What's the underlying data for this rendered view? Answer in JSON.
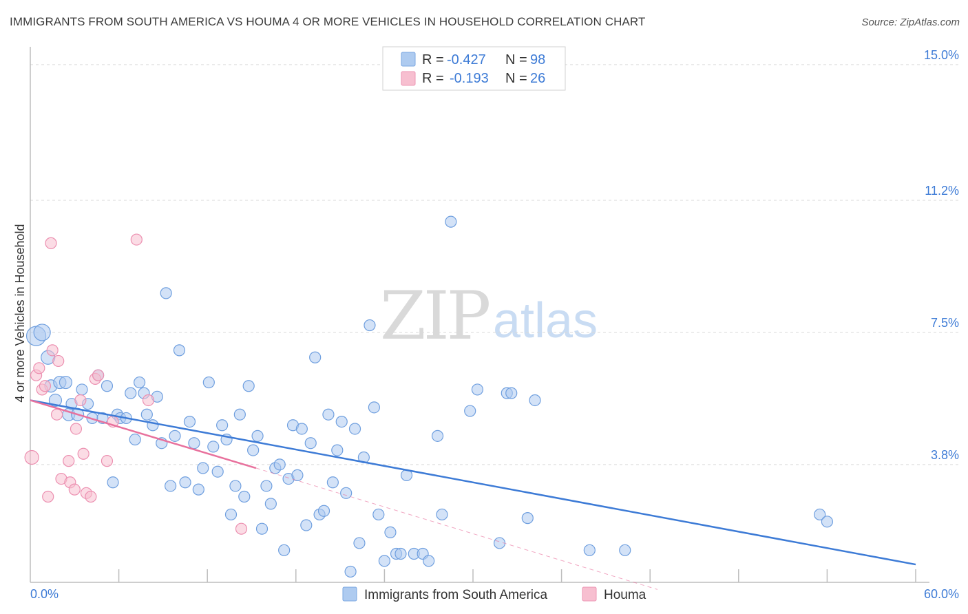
{
  "header": {
    "title": "IMMIGRANTS FROM SOUTH AMERICA VS HOUMA 4 OR MORE VEHICLES IN HOUSEHOLD CORRELATION CHART",
    "source": "Source: ZipAtlas.com"
  },
  "watermark": {
    "zip": "ZIP",
    "atlas": "atlas"
  },
  "legend": {
    "rows": [
      {
        "r_label": "R =",
        "r_value": "-0.427",
        "n_label": "N =",
        "n_value": "98",
        "color": "#aecbf0"
      },
      {
        "r_label": "R =",
        "r_value": "-0.193",
        "n_label": "N =",
        "n_value": "26",
        "color": "#f7bfd0"
      }
    ]
  },
  "chart_data": {
    "type": "scatter",
    "title": "IMMIGRANTS FROM SOUTH AMERICA VS HOUMA 4 OR MORE VEHICLES IN HOUSEHOLD CORRELATION CHART",
    "xlabel": "",
    "ylabel": "4 or more Vehicles in Household",
    "xlim": [
      0,
      60
    ],
    "ylim": [
      0.5,
      15.5
    ],
    "x_tick_labels": [
      "0.0%",
      "60.0%"
    ],
    "y_ticks": [
      3.8,
      7.5,
      11.2,
      15.0
    ],
    "y_tick_labels": [
      "3.8%",
      "7.5%",
      "11.2%",
      "15.0%"
    ],
    "grid": true,
    "legend_position": "bottom",
    "colors": {
      "blue": "#3d7bd6",
      "pink": "#e8719d",
      "blue_fill": "#aecbf0",
      "pink_fill": "#f7bfd0"
    },
    "series": [
      {
        "name": "Immigrants from South America",
        "color": "#3d7bd6",
        "trend": {
          "x": [
            0,
            60
          ],
          "y": [
            5.6,
            1.0
          ]
        },
        "points": [
          [
            0.4,
            7.4,
            14
          ],
          [
            0.8,
            7.5,
            12
          ],
          [
            1.2,
            6.8,
            10
          ],
          [
            1.4,
            6.0,
            9
          ],
          [
            1.7,
            5.6,
            9
          ],
          [
            2.0,
            6.1,
            9
          ],
          [
            2.4,
            6.1,
            9
          ],
          [
            2.6,
            5.2,
            9
          ],
          [
            2.8,
            5.5,
            8
          ],
          [
            3.2,
            5.2,
            9
          ],
          [
            3.5,
            5.9,
            8
          ],
          [
            3.9,
            5.5,
            8
          ],
          [
            4.2,
            5.1,
            8
          ],
          [
            4.6,
            6.3,
            8
          ],
          [
            4.9,
            5.1,
            8
          ],
          [
            5.2,
            6.0,
            8
          ],
          [
            5.6,
            3.3,
            8
          ],
          [
            5.9,
            5.2,
            8
          ],
          [
            6.1,
            5.1,
            8
          ],
          [
            6.5,
            5.1,
            8
          ],
          [
            6.8,
            5.8,
            8
          ],
          [
            7.1,
            4.5,
            8
          ],
          [
            7.4,
            6.1,
            8
          ],
          [
            7.7,
            5.8,
            8
          ],
          [
            7.9,
            5.2,
            8
          ],
          [
            8.3,
            4.9,
            8
          ],
          [
            8.6,
            5.7,
            8
          ],
          [
            8.9,
            4.4,
            8
          ],
          [
            9.2,
            8.6,
            8
          ],
          [
            9.5,
            3.2,
            8
          ],
          [
            9.8,
            4.6,
            8
          ],
          [
            10.1,
            7.0,
            8
          ],
          [
            10.5,
            3.3,
            8
          ],
          [
            10.8,
            5.0,
            8
          ],
          [
            11.1,
            4.4,
            8
          ],
          [
            11.4,
            3.1,
            8
          ],
          [
            11.7,
            3.7,
            8
          ],
          [
            12.1,
            6.1,
            8
          ],
          [
            12.4,
            4.3,
            8
          ],
          [
            12.7,
            3.6,
            8
          ],
          [
            13.0,
            4.9,
            8
          ],
          [
            13.3,
            4.5,
            8
          ],
          [
            13.6,
            2.4,
            8
          ],
          [
            13.9,
            3.2,
            8
          ],
          [
            14.2,
            5.2,
            8
          ],
          [
            14.5,
            2.9,
            8
          ],
          [
            14.8,
            6.0,
            8
          ],
          [
            15.1,
            4.2,
            8
          ],
          [
            15.4,
            4.6,
            8
          ],
          [
            15.7,
            2.0,
            8
          ],
          [
            16.0,
            3.2,
            8
          ],
          [
            16.3,
            2.7,
            8
          ],
          [
            16.6,
            3.7,
            8
          ],
          [
            16.9,
            3.8,
            8
          ],
          [
            17.2,
            1.4,
            8
          ],
          [
            17.5,
            3.4,
            8
          ],
          [
            17.8,
            4.9,
            8
          ],
          [
            18.1,
            3.5,
            8
          ],
          [
            18.4,
            4.8,
            8
          ],
          [
            18.7,
            2.1,
            8
          ],
          [
            19.0,
            4.4,
            8
          ],
          [
            19.3,
            6.8,
            8
          ],
          [
            19.6,
            2.4,
            8
          ],
          [
            19.9,
            2.5,
            8
          ],
          [
            20.2,
            5.2,
            8
          ],
          [
            20.5,
            3.3,
            8
          ],
          [
            20.8,
            4.2,
            8
          ],
          [
            21.1,
            5.0,
            8
          ],
          [
            21.4,
            3.0,
            8
          ],
          [
            21.7,
            0.8,
            8
          ],
          [
            22.0,
            4.8,
            8
          ],
          [
            22.3,
            1.6,
            8
          ],
          [
            22.6,
            4.0,
            8
          ],
          [
            23.0,
            7.7,
            8
          ],
          [
            23.3,
            5.4,
            8
          ],
          [
            23.6,
            2.4,
            8
          ],
          [
            24.0,
            1.1,
            8
          ],
          [
            24.4,
            1.9,
            8
          ],
          [
            24.8,
            1.3,
            8
          ],
          [
            25.1,
            1.3,
            8
          ],
          [
            25.5,
            3.5,
            8
          ],
          [
            26.0,
            1.3,
            8
          ],
          [
            26.6,
            1.3,
            8
          ],
          [
            27.0,
            1.1,
            8
          ],
          [
            27.6,
            4.6,
            8
          ],
          [
            27.9,
            2.4,
            8
          ],
          [
            28.5,
            10.6,
            8
          ],
          [
            29.8,
            5.3,
            8
          ],
          [
            30.3,
            5.9,
            8
          ],
          [
            31.8,
            1.6,
            8
          ],
          [
            32.3,
            5.8,
            8
          ],
          [
            32.6,
            5.8,
            8
          ],
          [
            33.7,
            2.3,
            8
          ],
          [
            34.2,
            5.6,
            8
          ],
          [
            37.9,
            1.4,
            8
          ],
          [
            40.3,
            1.4,
            8
          ],
          [
            53.5,
            2.4,
            8
          ],
          [
            54.0,
            2.2,
            8
          ]
        ]
      },
      {
        "name": "Houma",
        "color": "#e8719d",
        "trend": {
          "x": [
            0,
            15.3
          ],
          "y": [
            5.6,
            3.7
          ]
        },
        "trend_ext": {
          "x": [
            15.3,
            42.5
          ],
          "y": [
            3.7,
            0.3
          ]
        },
        "points": [
          [
            0.1,
            4.0,
            10
          ],
          [
            0.4,
            6.3,
            8
          ],
          [
            0.6,
            6.5,
            8
          ],
          [
            0.8,
            5.9,
            8
          ],
          [
            1.0,
            6.0,
            8
          ],
          [
            1.2,
            2.9,
            8
          ],
          [
            1.4,
            10.0,
            8
          ],
          [
            1.5,
            7.0,
            8
          ],
          [
            1.8,
            5.2,
            8
          ],
          [
            1.9,
            6.7,
            8
          ],
          [
            2.1,
            3.4,
            8
          ],
          [
            2.6,
            3.9,
            8
          ],
          [
            2.7,
            3.3,
            8
          ],
          [
            3.0,
            3.1,
            8
          ],
          [
            3.1,
            4.8,
            8
          ],
          [
            3.4,
            5.6,
            8
          ],
          [
            3.6,
            4.1,
            8
          ],
          [
            3.8,
            3.0,
            8
          ],
          [
            4.1,
            2.9,
            8
          ],
          [
            4.4,
            6.2,
            8
          ],
          [
            4.6,
            6.3,
            8
          ],
          [
            5.2,
            3.9,
            8
          ],
          [
            5.6,
            5.0,
            8
          ],
          [
            7.2,
            10.1,
            8
          ],
          [
            8.0,
            5.6,
            8
          ],
          [
            14.3,
            2.0,
            8
          ]
        ]
      }
    ]
  },
  "bottom_legend": {
    "items": [
      {
        "label": "Immigrants from South America",
        "color": "#aecbf0"
      },
      {
        "label": "Houma",
        "color": "#f7bfd0"
      }
    ]
  }
}
